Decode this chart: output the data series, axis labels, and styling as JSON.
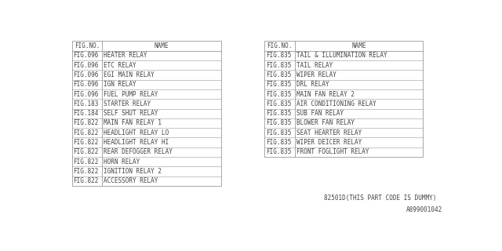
{
  "left_table": {
    "headers": [
      "FIG.NO.",
      "NAME"
    ],
    "rows": [
      [
        "FIG.096",
        "HEATER RELAY"
      ],
      [
        "FIG.096",
        "ETC RELAY"
      ],
      [
        "FIG.096",
        "EGI MAIN RELAY"
      ],
      [
        "FIG.096",
        "IGN RELAY"
      ],
      [
        "FIG.096",
        "FUEL PUMP RELAY"
      ],
      [
        "FIG.183",
        "STARTER RELAY"
      ],
      [
        "FIG.184",
        "SELF SHUT RELAY"
      ],
      [
        "FIG.822",
        "MAIN FAN RELAY 1"
      ],
      [
        "FIG.822",
        "HEADLIGHT RELAY LO"
      ],
      [
        "FIG.822",
        "HEADLIGHT RELAY HI"
      ],
      [
        "FIG.822",
        "REAR DEFOGGER RELAY"
      ],
      [
        "FIG.822",
        "HORN RELAY"
      ],
      [
        "FIG.822",
        "IGNITION RELAY 2"
      ],
      [
        "FIG.822",
        "ACCESSORY RELAY"
      ]
    ]
  },
  "right_table": {
    "headers": [
      "FIG.NO.",
      "NAME"
    ],
    "rows": [
      [
        "FIG.835",
        "TAIL & ILLUMINATION RELAY"
      ],
      [
        "FIG.835",
        "TAIL RELAY"
      ],
      [
        "FIG.835",
        "WIPER RELAY"
      ],
      [
        "FIG.835",
        "DRL RELAY"
      ],
      [
        "FIG.835",
        "MAIN FAN RELAY 2"
      ],
      [
        "FIG.835",
        "AIR CONDITIONING RELAY"
      ],
      [
        "FIG.835",
        "SUB FAN RELAY"
      ],
      [
        "FIG.835",
        "BLOWER FAN RELAY"
      ],
      [
        "FIG.835",
        "SEAT HEARTER RELAY"
      ],
      [
        "FIG.835",
        "WIPER DEICER RELAY"
      ],
      [
        "FIG.835",
        "FRONT FOGLIGHT RELAY"
      ]
    ]
  },
  "footer_left": "82501D(THIS PART CODE IS DUMMY)",
  "footer_right": "A899001042",
  "bg_color": "#ffffff",
  "border_color": "#999999",
  "text_color": "#444444",
  "font_size": 5.5
}
